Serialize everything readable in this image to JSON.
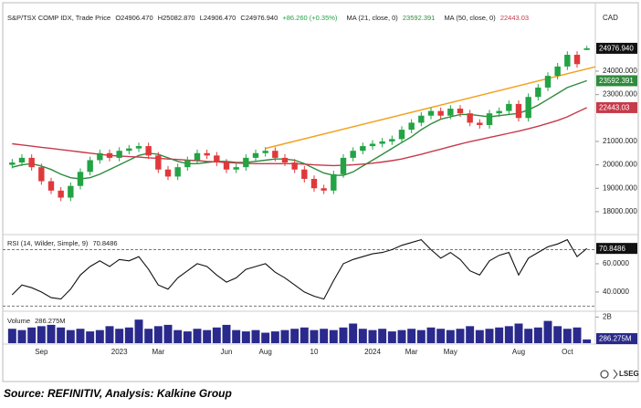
{
  "source": "Source: REFINITIV, Analysis: Kalkine Group",
  "brand": "LSEG",
  "chart_data": [
    {
      "type": "candlestick",
      "title": "S&P/TSX COMP IDX, Trade Price",
      "summary": [
        "O24906.470",
        "H25082.870",
        "L24906.470",
        "C24976.940",
        "+86.260 (+0.35%)"
      ],
      "currency": "CAD",
      "up_color": "#22a344",
      "down_color": "#e0393b",
      "categories": [
        null,
        null,
        null,
        "Sep",
        null,
        null,
        null,
        null,
        null,
        null,
        null,
        "2023",
        null,
        null,
        null,
        "Mar",
        null,
        null,
        null,
        null,
        null,
        null,
        "Jun",
        null,
        null,
        null,
        "Aug",
        null,
        null,
        null,
        null,
        "10",
        null,
        null,
        null,
        null,
        null,
        "2024",
        null,
        null,
        null,
        "Mar",
        null,
        null,
        null,
        "May",
        null,
        null,
        null,
        null,
        null,
        null,
        "Aug",
        null,
        null,
        null,
        null,
        "Oct",
        null,
        null
      ],
      "open": [
        20000,
        20100,
        20300,
        19900,
        19300,
        18900,
        18600,
        19100,
        19700,
        20200,
        20500,
        20300,
        20600,
        20700,
        20800,
        20400,
        19800,
        19500,
        19900,
        20200,
        20500,
        20400,
        20100,
        19800,
        19900,
        20300,
        20500,
        20600,
        20300,
        20100,
        19800,
        19400,
        19000,
        18900,
        19600,
        20300,
        20600,
        20800,
        20900,
        21000,
        21100,
        21500,
        21800,
        22100,
        22300,
        22100,
        22400,
        22200,
        21800,
        21700,
        22200,
        22300,
        22600,
        22000,
        22900,
        23300,
        23800,
        24200,
        24700,
        24906.47
      ],
      "high": [
        20250,
        20450,
        20450,
        20050,
        19450,
        19050,
        19250,
        19850,
        20350,
        20650,
        20650,
        20750,
        20850,
        20950,
        20950,
        20550,
        19950,
        20050,
        20350,
        20650,
        20650,
        20550,
        20250,
        20050,
        20450,
        20650,
        20750,
        20750,
        20450,
        20250,
        19950,
        19550,
        19150,
        19750,
        20450,
        20750,
        20950,
        21050,
        21150,
        21250,
        21650,
        21950,
        22250,
        22450,
        22450,
        22550,
        22550,
        22350,
        21950,
        22350,
        22450,
        22750,
        22750,
        23050,
        23450,
        23950,
        24350,
        24850,
        24850,
        25082.87
      ],
      "low": [
        19850,
        19950,
        19750,
        19150,
        18750,
        18450,
        18450,
        18950,
        19550,
        20050,
        20150,
        20150,
        20450,
        20550,
        20250,
        19650,
        19350,
        19350,
        19750,
        20050,
        20250,
        19950,
        19650,
        19650,
        19750,
        20150,
        20350,
        20150,
        19950,
        19650,
        19250,
        18850,
        18750,
        18750,
        19450,
        20150,
        20450,
        20650,
        20750,
        20850,
        20950,
        21350,
        21650,
        21950,
        21950,
        21950,
        22050,
        21650,
        21550,
        21550,
        22050,
        22150,
        21850,
        21850,
        22750,
        23150,
        23650,
        24050,
        24150,
        24906.47
      ],
      "close": [
        20100,
        20300,
        19900,
        19300,
        18900,
        18600,
        19100,
        19700,
        20200,
        20500,
        20300,
        20600,
        20700,
        20800,
        20400,
        19800,
        19500,
        19900,
        20200,
        20500,
        20400,
        20100,
        19800,
        19900,
        20300,
        20500,
        20600,
        20300,
        20100,
        19800,
        19400,
        19000,
        18900,
        19600,
        20300,
        20600,
        20800,
        20900,
        21000,
        21100,
        21500,
        21800,
        22100,
        22300,
        22100,
        22400,
        22200,
        21800,
        21700,
        22200,
        22300,
        22600,
        22000,
        22900,
        23300,
        23800,
        24200,
        24700,
        24300,
        24976.94
      ],
      "last_label": "24976.940",
      "series": [
        {
          "name": "MA (21, close, 0)",
          "color": "#2f8a3c",
          "last_label": "23592.391",
          "values": [
            19900,
            20000,
            20050,
            19950,
            19800,
            19600,
            19450,
            19400,
            19450,
            19600,
            19800,
            20000,
            20200,
            20400,
            20500,
            20450,
            20300,
            20150,
            20050,
            20050,
            20100,
            20150,
            20150,
            20100,
            20100,
            20150,
            20200,
            20250,
            20250,
            20200,
            20050,
            19850,
            19650,
            19550,
            19550,
            19700,
            19950,
            20200,
            20450,
            20700,
            20950,
            21200,
            21500,
            21750,
            21950,
            22050,
            22150,
            22150,
            22100,
            22050,
            22100,
            22150,
            22200,
            22350,
            22550,
            22800,
            23050,
            23300,
            23450,
            23592.391
          ]
        },
        {
          "name": "MA (50, close, 0)",
          "color": "#c63a4a",
          "last_label": "22443.03",
          "values": [
            20900,
            20850,
            20800,
            20750,
            20700,
            20650,
            20600,
            20550,
            20500,
            20450,
            20400,
            20380,
            20350,
            20330,
            20300,
            20280,
            20250,
            20230,
            20200,
            20180,
            20150,
            20130,
            20100,
            20080,
            20060,
            20050,
            20050,
            20050,
            20050,
            20050,
            20030,
            20000,
            19980,
            19970,
            19980,
            20000,
            20030,
            20070,
            20120,
            20180,
            20250,
            20350,
            20450,
            20560,
            20670,
            20780,
            20890,
            20990,
            21080,
            21170,
            21260,
            21350,
            21440,
            21540,
            21650,
            21770,
            21900,
            22050,
            22250,
            22443.03
          ]
        }
      ],
      "trendline": {
        "color": "#f5a01e",
        "start": [
          26,
          20700
        ],
        "end": [
          60,
          24200
        ]
      },
      "ylim": [
        17100,
        26650
      ],
      "yticks": [
        {
          "value": 18000,
          "label": "18000.000"
        },
        {
          "value": 19000,
          "label": "19000.000"
        },
        {
          "value": 20000,
          "label": "20000.000"
        },
        {
          "value": 21000,
          "label": "21000.000"
        },
        {
          "value": 23000,
          "label": "23000.000"
        },
        {
          "value": 24000,
          "label": "24000.000"
        }
      ]
    },
    {
      "type": "line",
      "title": "RSI (14, Wilder, Simple, 9)",
      "last_label": "70.8486",
      "color": "#111111",
      "values": [
        38,
        45,
        43,
        40,
        36,
        35,
        42,
        52,
        58,
        62,
        58,
        63,
        62,
        65,
        56,
        45,
        42,
        50,
        55,
        60,
        58,
        52,
        47,
        50,
        56,
        58,
        60,
        54,
        50,
        45,
        40,
        37,
        35,
        48,
        60,
        63,
        65,
        67,
        68,
        70,
        73,
        75,
        77,
        70,
        64,
        68,
        63,
        55,
        52,
        62,
        66,
        68,
        52,
        64,
        68,
        72,
        74,
        77,
        65,
        70.8486
      ],
      "levels": [
        70,
        30
      ],
      "ylim": [
        27,
        80
      ],
      "yticks": [
        {
          "value": 60,
          "label": "60.0000"
        },
        {
          "value": 40,
          "label": "40.0000"
        }
      ]
    },
    {
      "type": "bar",
      "title": "Volume",
      "last_label": "286.275M",
      "color": "#2a2a8c",
      "values": [
        1100000000.0,
        1000000000.0,
        1200000000.0,
        1300000000.0,
        1400000000.0,
        1200000000.0,
        1000000000.0,
        1100000000.0,
        900000000.0,
        1000000000.0,
        1300000000.0,
        1100000000.0,
        1200000000.0,
        1800000000.0,
        1100000000.0,
        1300000000.0,
        1400000000.0,
        1000000000.0,
        900000000.0,
        1100000000.0,
        1000000000.0,
        1200000000.0,
        1400000000.0,
        1000000000.0,
        900000000.0,
        1000000000.0,
        800000000.0,
        900000000.0,
        1000000000.0,
        1100000000.0,
        1200000000.0,
        1000000000.0,
        1100000000.0,
        1000000000.0,
        1200000000.0,
        1500000000.0,
        1100000000.0,
        1000000000.0,
        1100000000.0,
        900000000.0,
        1000000000.0,
        1100000000.0,
        1000000000.0,
        1200000000.0,
        1100000000.0,
        1000000000.0,
        1100000000.0,
        1300000000.0,
        1000000000.0,
        1100000000.0,
        1200000000.0,
        1300000000.0,
        1500000000.0,
        1100000000.0,
        1200000000.0,
        1700000000.0,
        1300000000.0,
        1100000000.0,
        1200000000.0,
        286275000
      ],
      "ylim": [
        0,
        2300000000
      ],
      "yticks": [
        {
          "value": 2000000000,
          "label": "2B"
        }
      ]
    }
  ]
}
